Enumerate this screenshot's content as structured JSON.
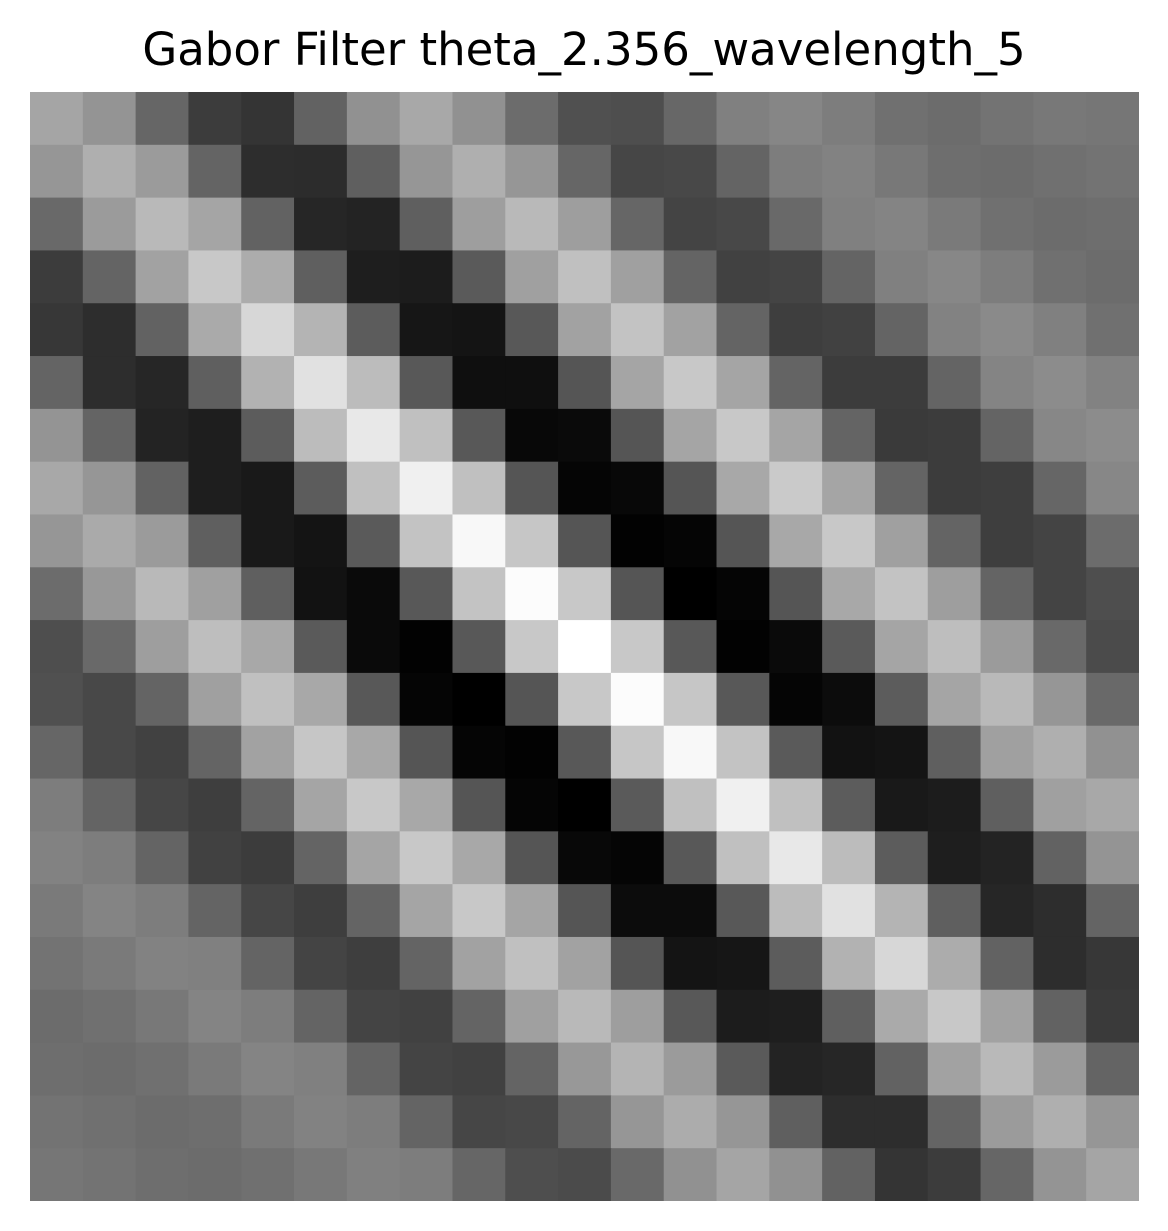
{
  "chart_data": {
    "type": "heatmap",
    "title": "Gabor Filter theta_2.356_wavelength_5",
    "xlabel": "",
    "ylabel": "",
    "axes_visible": false,
    "grid": false,
    "colormap": "gray",
    "value_range": [
      0,
      255
    ],
    "rows": 21,
    "cols": 21,
    "values": [
      [
        165,
        148,
        102,
        60,
        52,
        98,
        145,
        168,
        145,
        108,
        80,
        78,
        103,
        128,
        134,
        125,
        112,
        108,
        115,
        120,
        118
      ],
      [
        150,
        175,
        155,
        100,
        45,
        44,
        95,
        150,
        175,
        150,
        102,
        70,
        72,
        100,
        125,
        130,
        120,
        110,
        108,
        112,
        115
      ],
      [
        105,
        155,
        185,
        165,
        98,
        38,
        35,
        95,
        158,
        185,
        158,
        102,
        68,
        72,
        105,
        128,
        132,
        122,
        112,
        108,
        110
      ],
      [
        60,
        100,
        162,
        200,
        172,
        95,
        30,
        28,
        90,
        160,
        192,
        160,
        100,
        65,
        68,
        100,
        128,
        135,
        125,
        112,
        108
      ],
      [
        55,
        45,
        98,
        170,
        215,
        180,
        92,
        22,
        20,
        88,
        162,
        195,
        162,
        100,
        62,
        65,
        100,
        130,
        138,
        128,
        112
      ],
      [
        100,
        45,
        38,
        95,
        178,
        225,
        188,
        88,
        15,
        15,
        85,
        165,
        200,
        165,
        100,
        60,
        60,
        100,
        132,
        140,
        130
      ],
      [
        148,
        100,
        35,
        30,
        92,
        188,
        232,
        192,
        88,
        8,
        10,
        85,
        165,
        200,
        165,
        100,
        58,
        60,
        100,
        135,
        140
      ],
      [
        168,
        150,
        98,
        30,
        25,
        92,
        192,
        240,
        192,
        85,
        5,
        8,
        85,
        168,
        202,
        165,
        100,
        60,
        62,
        102,
        135
      ],
      [
        150,
        170,
        155,
        95,
        25,
        20,
        90,
        195,
        248,
        198,
        85,
        2,
        5,
        85,
        168,
        200,
        160,
        100,
        62,
        68,
        108
      ],
      [
        108,
        152,
        185,
        160,
        95,
        18,
        10,
        88,
        195,
        252,
        200,
        85,
        0,
        5,
        85,
        168,
        195,
        158,
        100,
        68,
        78
      ],
      [
        78,
        105,
        158,
        190,
        168,
        90,
        10,
        2,
        88,
        200,
        255,
        200,
        88,
        2,
        10,
        90,
        165,
        190,
        155,
        105,
        75
      ],
      [
        80,
        72,
        100,
        160,
        192,
        168,
        88,
        5,
        0,
        85,
        200,
        252,
        198,
        88,
        5,
        12,
        92,
        165,
        185,
        150,
        105
      ],
      [
        102,
        72,
        65,
        100,
        162,
        198,
        168,
        85,
        5,
        2,
        88,
        198,
        248,
        195,
        90,
        18,
        20,
        95,
        160,
        175,
        145
      ],
      [
        125,
        100,
        70,
        62,
        100,
        165,
        200,
        168,
        85,
        5,
        0,
        90,
        192,
        240,
        192,
        92,
        25,
        28,
        95,
        160,
        168
      ],
      [
        130,
        125,
        100,
        65,
        60,
        100,
        165,
        200,
        168,
        85,
        8,
        5,
        88,
        192,
        232,
        188,
        92,
        30,
        35,
        98,
        148
      ],
      [
        122,
        132,
        125,
        100,
        70,
        62,
        100,
        165,
        200,
        165,
        85,
        12,
        12,
        88,
        188,
        225,
        180,
        95,
        38,
        45,
        100
      ],
      [
        115,
        122,
        130,
        128,
        100,
        68,
        62,
        100,
        162,
        192,
        162,
        85,
        20,
        22,
        92,
        178,
        215,
        172,
        98,
        45,
        55
      ],
      [
        108,
        112,
        120,
        132,
        125,
        100,
        68,
        65,
        100,
        160,
        185,
        158,
        88,
        28,
        30,
        95,
        170,
        200,
        162,
        98,
        58
      ],
      [
        110,
        108,
        112,
        122,
        132,
        128,
        100,
        68,
        65,
        100,
        152,
        180,
        155,
        90,
        35,
        38,
        98,
        162,
        185,
        155,
        100
      ],
      [
        115,
        112,
        108,
        110,
        122,
        130,
        125,
        100,
        70,
        72,
        100,
        150,
        172,
        150,
        95,
        45,
        45,
        100,
        155,
        175,
        150
      ],
      [
        118,
        115,
        110,
        108,
        112,
        120,
        128,
        125,
        102,
        78,
        75,
        105,
        145,
        165,
        145,
        98,
        52,
        60,
        102,
        148,
        165
      ]
    ]
  }
}
